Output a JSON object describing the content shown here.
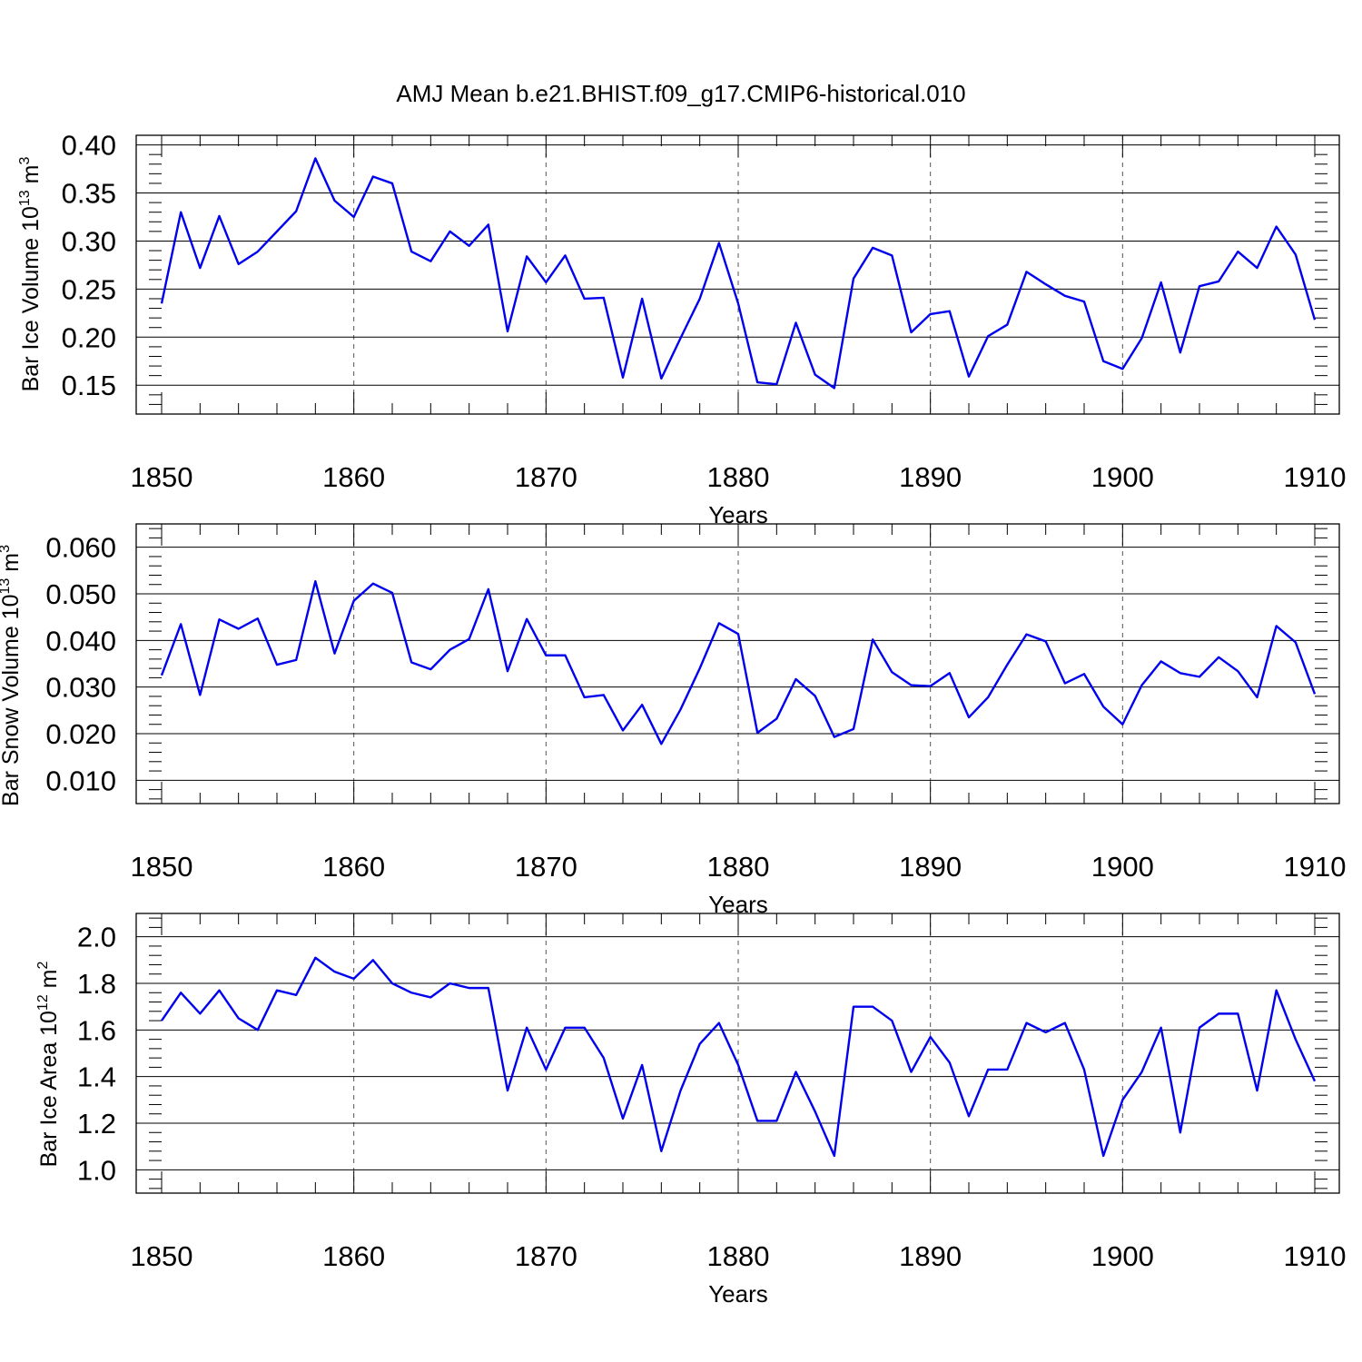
{
  "title": "AMJ Mean b.e21.BHIST.f09_g17.CMIP6-historical.010",
  "line_color": "#0000ee",
  "chart_data": [
    {
      "type": "line",
      "xlabel": "Years",
      "ylabel": {
        "main": "Bar Ice Volume 10",
        "exp": "13",
        "unit": " m",
        "unit_exp": "3"
      },
      "xlim": [
        1850,
        1910
      ],
      "ylim": [
        0.12,
        0.41
      ],
      "xticks": [
        1850,
        1860,
        1870,
        1880,
        1890,
        1900,
        1910
      ],
      "yticks": [
        "0.15",
        "0.20",
        "0.25",
        "0.30",
        "0.35",
        "0.40"
      ],
      "grid": "vertical dashed at major x ticks",
      "x": [
        1850,
        1851,
        1852,
        1853,
        1854,
        1855,
        1856,
        1857,
        1858,
        1859,
        1860,
        1861,
        1862,
        1863,
        1864,
        1865,
        1866,
        1867,
        1868,
        1869,
        1870,
        1871,
        1872,
        1873,
        1874,
        1875,
        1876,
        1877,
        1878,
        1879,
        1880,
        1881,
        1882,
        1883,
        1884,
        1885,
        1886,
        1887,
        1888,
        1889,
        1890,
        1891,
        1892,
        1893,
        1894,
        1895,
        1896,
        1897,
        1898,
        1899,
        1900,
        1901,
        1902,
        1903,
        1904,
        1905,
        1906,
        1907,
        1908,
        1909,
        1910
      ],
      "series": [
        {
          "values": [
            0.235,
            0.33,
            0.272,
            0.326,
            0.276,
            0.289,
            0.31,
            0.331,
            0.386,
            0.342,
            0.325,
            0.367,
            0.36,
            0.289,
            0.279,
            0.31,
            0.295,
            0.317,
            0.206,
            0.284,
            0.257,
            0.285,
            0.24,
            0.241,
            0.158,
            0.24,
            0.157,
            0.199,
            0.24,
            0.298,
            0.235,
            0.153,
            0.151,
            0.215,
            0.161,
            0.147,
            0.261,
            0.293,
            0.285,
            0.205,
            0.224,
            0.227,
            0.159,
            0.201,
            0.213,
            0.268,
            0.255,
            0.243,
            0.237,
            0.175,
            0.167,
            0.199,
            0.257,
            0.184,
            0.253,
            0.258,
            0.289,
            0.272,
            0.315,
            0.286,
            0.218
          ]
        }
      ]
    },
    {
      "type": "line",
      "xlabel": "Years",
      "ylabel": {
        "main": "Bar Snow Volume 10",
        "exp": "13",
        "unit": " m",
        "unit_exp": "3"
      },
      "xlim": [
        1850,
        1910
      ],
      "ylim": [
        0.005,
        0.065
      ],
      "xticks": [
        1850,
        1860,
        1870,
        1880,
        1890,
        1900,
        1910
      ],
      "yticks": [
        "0.010",
        "0.020",
        "0.030",
        "0.040",
        "0.050",
        "0.060"
      ],
      "grid": "vertical dashed at major x ticks",
      "x": [
        1850,
        1851,
        1852,
        1853,
        1854,
        1855,
        1856,
        1857,
        1858,
        1859,
        1860,
        1861,
        1862,
        1863,
        1864,
        1865,
        1866,
        1867,
        1868,
        1869,
        1870,
        1871,
        1872,
        1873,
        1874,
        1875,
        1876,
        1877,
        1878,
        1879,
        1880,
        1881,
        1882,
        1883,
        1884,
        1885,
        1886,
        1887,
        1888,
        1889,
        1890,
        1891,
        1892,
        1893,
        1894,
        1895,
        1896,
        1897,
        1898,
        1899,
        1900,
        1901,
        1902,
        1903,
        1904,
        1905,
        1906,
        1907,
        1908,
        1909,
        1910
      ],
      "series": [
        {
          "values": [
            0.0325,
            0.0435,
            0.0283,
            0.0445,
            0.0425,
            0.0447,
            0.0348,
            0.0358,
            0.0527,
            0.0372,
            0.0485,
            0.0522,
            0.0502,
            0.0353,
            0.0338,
            0.038,
            0.0403,
            0.051,
            0.0334,
            0.0446,
            0.0368,
            0.0368,
            0.0278,
            0.0283,
            0.0207,
            0.0262,
            0.0178,
            0.0252,
            0.034,
            0.0437,
            0.0414,
            0.0202,
            0.0232,
            0.0317,
            0.0281,
            0.0193,
            0.021,
            0.0402,
            0.0332,
            0.0304,
            0.0302,
            0.033,
            0.0235,
            0.0278,
            0.0348,
            0.0413,
            0.0398,
            0.0308,
            0.0328,
            0.0258,
            0.022,
            0.0304,
            0.0355,
            0.033,
            0.0322,
            0.0364,
            0.0334,
            0.0278,
            0.0431,
            0.0396,
            0.0285
          ]
        }
      ]
    },
    {
      "type": "line",
      "xlabel": "Years",
      "ylabel": {
        "main": "Bar Ice Area 10",
        "exp": "12",
        "unit": " m",
        "unit_exp": "2"
      },
      "xlim": [
        1850,
        1910
      ],
      "ylim": [
        0.9,
        2.1
      ],
      "xticks": [
        1850,
        1860,
        1870,
        1880,
        1890,
        1900,
        1910
      ],
      "yticks": [
        "1.0",
        "1.2",
        "1.4",
        "1.6",
        "1.8",
        "2.0"
      ],
      "grid": "vertical dashed at major x ticks",
      "x": [
        1850,
        1851,
        1852,
        1853,
        1854,
        1855,
        1856,
        1857,
        1858,
        1859,
        1860,
        1861,
        1862,
        1863,
        1864,
        1865,
        1866,
        1867,
        1868,
        1869,
        1870,
        1871,
        1872,
        1873,
        1874,
        1875,
        1876,
        1877,
        1878,
        1879,
        1880,
        1881,
        1882,
        1883,
        1884,
        1885,
        1886,
        1887,
        1888,
        1889,
        1890,
        1891,
        1892,
        1893,
        1894,
        1895,
        1896,
        1897,
        1898,
        1899,
        1900,
        1901,
        1902,
        1903,
        1904,
        1905,
        1906,
        1907,
        1908,
        1909,
        1910
      ],
      "series": [
        {
          "values": [
            1.64,
            1.76,
            1.67,
            1.77,
            1.65,
            1.6,
            1.77,
            1.75,
            1.91,
            1.85,
            1.82,
            1.9,
            1.8,
            1.76,
            1.74,
            1.8,
            1.78,
            1.78,
            1.34,
            1.61,
            1.43,
            1.61,
            1.61,
            1.48,
            1.22,
            1.45,
            1.08,
            1.34,
            1.54,
            1.63,
            1.45,
            1.21,
            1.21,
            1.42,
            1.25,
            1.06,
            1.7,
            1.7,
            1.64,
            1.42,
            1.57,
            1.46,
            1.23,
            1.43,
            1.43,
            1.63,
            1.59,
            1.63,
            1.43,
            1.06,
            1.3,
            1.42,
            1.61,
            1.16,
            1.61,
            1.67,
            1.67,
            1.34,
            1.77,
            1.56,
            1.38
          ]
        }
      ]
    }
  ]
}
